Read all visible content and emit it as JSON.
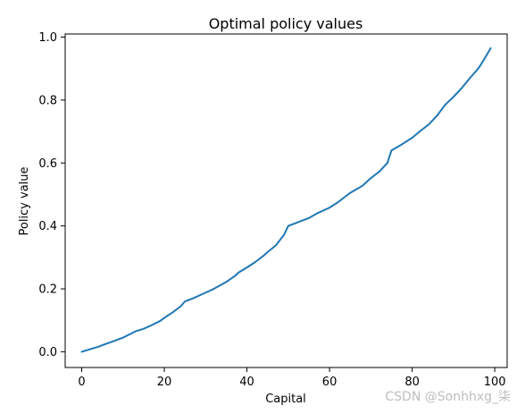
{
  "chart_data": {
    "type": "line",
    "title": "Optimal policy values",
    "xlabel": "Capital",
    "ylabel": "Policy value",
    "xlim": [
      -4,
      103
    ],
    "ylim": [
      -0.05,
      1.01
    ],
    "xticks": [
      0,
      20,
      40,
      60,
      80,
      100
    ],
    "yticks": [
      0.0,
      0.2,
      0.4,
      0.6,
      0.8,
      1.0
    ],
    "xtick_labels": [
      "0",
      "20",
      "40",
      "60",
      "80",
      "100"
    ],
    "ytick_labels": [
      "0.0",
      "0.2",
      "0.4",
      "0.6",
      "0.8",
      "1.0"
    ],
    "grid": false,
    "series": [
      {
        "color": "#1f77b4",
        "x": [
          0,
          2,
          4,
          6,
          8,
          10,
          12,
          13,
          15,
          17,
          19,
          20,
          22,
          24,
          25,
          27,
          30,
          32,
          35,
          37,
          38,
          40,
          42,
          44,
          45,
          47,
          48,
          49,
          50,
          52,
          55,
          57,
          60,
          62,
          63,
          65,
          67,
          68,
          70,
          72,
          74,
          75,
          77,
          80,
          82,
          84,
          86,
          88,
          90,
          92,
          94,
          95,
          96,
          97,
          98,
          99
        ],
        "y": [
          0.0,
          0.008,
          0.016,
          0.026,
          0.035,
          0.045,
          0.058,
          0.065,
          0.073,
          0.085,
          0.098,
          0.108,
          0.125,
          0.145,
          0.16,
          0.17,
          0.188,
          0.2,
          0.222,
          0.24,
          0.252,
          0.268,
          0.285,
          0.305,
          0.317,
          0.338,
          0.355,
          0.372,
          0.4,
          0.41,
          0.425,
          0.44,
          0.458,
          0.475,
          0.485,
          0.505,
          0.52,
          0.528,
          0.552,
          0.572,
          0.6,
          0.64,
          0.655,
          0.68,
          0.702,
          0.722,
          0.75,
          0.785,
          0.81,
          0.838,
          0.87,
          0.885,
          0.9,
          0.92,
          0.942,
          0.965
        ]
      }
    ]
  },
  "watermark": "CSDN @Sonhhxg_柒"
}
